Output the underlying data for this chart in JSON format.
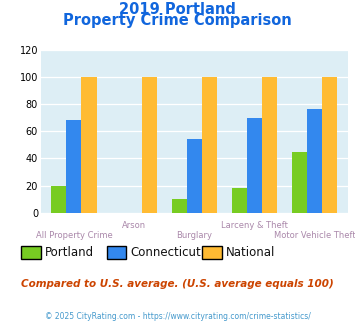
{
  "title_line1": "2019 Portland",
  "title_line2": "Property Crime Comparison",
  "categories": [
    "All Property Crime",
    "Arson",
    "Burglary",
    "Larceny & Theft",
    "Motor Vehicle Theft"
  ],
  "series": {
    "Portland": [
      20,
      0,
      10,
      18,
      45
    ],
    "Connecticut": [
      68,
      0,
      54,
      70,
      76
    ],
    "National": [
      100,
      100,
      100,
      100,
      100
    ]
  },
  "colors": {
    "Portland": "#77cc22",
    "Connecticut": "#3388ee",
    "National": "#ffbb33"
  },
  "ylim": [
    0,
    120
  ],
  "yticks": [
    0,
    20,
    40,
    60,
    80,
    100,
    120
  ],
  "footnote1": "Compared to U.S. average. (U.S. average equals 100)",
  "footnote2": "© 2025 CityRating.com - https://www.cityrating.com/crime-statistics/",
  "title_color": "#1166dd",
  "footnote1_color": "#cc4400",
  "footnote2_color": "#4499cc",
  "xlabel_color_bottom": "#aa88aa",
  "xlabel_color_top": "#aa88aa",
  "legend_text_color": "#111111",
  "bg_color": "#ddeef5",
  "bar_width": 0.25
}
